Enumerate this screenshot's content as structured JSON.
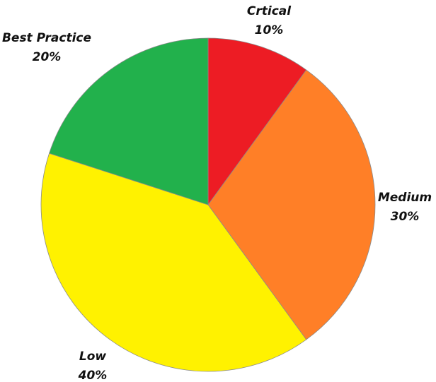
{
  "chart_data": {
    "type": "pie",
    "title": "",
    "start_angle_deg": 0,
    "direction": "clockwise",
    "slices": [
      {
        "label": "Crtical",
        "percent_label": "10%",
        "value": 10,
        "color": "#ed1c24"
      },
      {
        "label": "Medium",
        "percent_label": "30%",
        "value": 30,
        "color": "#ff7f27"
      },
      {
        "label": "Low",
        "percent_label": "40%",
        "value": 40,
        "color": "#fff200"
      },
      {
        "label": "Best Practice",
        "percent_label": "20%",
        "value": 20,
        "color": "#22b14c"
      }
    ]
  }
}
